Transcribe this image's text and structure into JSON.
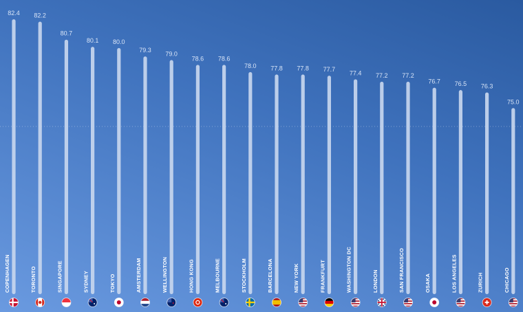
{
  "chart_data": {
    "type": "bar",
    "title": "",
    "xlabel": "",
    "ylabel": "",
    "categories": [
      "COPENHAGEN",
      "TORONTO",
      "SINGAPORE",
      "SYDNEY",
      "TOKYO",
      "AMSTERDAM",
      "WELLINGTON",
      "HONG KONG",
      "MELBOURNE",
      "STOCKHOLM",
      "BARCELONA",
      "NEW YORK",
      "FRANKFURT",
      "WASHINGTON DC",
      "LONDON",
      "SAN FRANCISCO",
      "OSAKA",
      "LOS ANGELES",
      "ZURICH",
      "CHICAGO"
    ],
    "values": [
      82.4,
      82.2,
      80.7,
      80.1,
      80.0,
      79.3,
      79.0,
      78.6,
      78.6,
      78.0,
      77.8,
      77.8,
      77.7,
      77.4,
      77.2,
      77.2,
      76.7,
      76.5,
      76.3,
      75.0
    ],
    "value_labels": [
      "82.4",
      "82.2",
      "80.7",
      "80.1",
      "80.0",
      "79.3",
      "79.0",
      "78.6",
      "78.6",
      "78.0",
      "77.8",
      "77.8",
      "77.7",
      "77.4",
      "77.2",
      "77.2",
      "76.7",
      "76.5",
      "76.3",
      "75.0"
    ],
    "flags": [
      "denmark-flag-icon",
      "canada-flag-icon",
      "singapore-flag-icon",
      "australia-flag-icon",
      "japan-flag-icon",
      "netherlands-flag-icon",
      "new-zealand-flag-icon",
      "hong-kong-flag-icon",
      "australia-flag-icon",
      "sweden-flag-icon",
      "spain-flag-icon",
      "usa-flag-icon",
      "germany-flag-icon",
      "usa-flag-icon",
      "uk-flag-icon",
      "usa-flag-icon",
      "japan-flag-icon",
      "usa-flag-icon",
      "switzerland-flag-icon",
      "usa-flag-icon"
    ],
    "ylim": [
      0,
      82.4
    ],
    "orientation": "vertical",
    "grid": false,
    "legend": "none",
    "colors": {
      "bar": "#c7d6ee",
      "value_label": "#d8e4f7",
      "category_label": "#ffffff",
      "background_top": "#2a5aa0",
      "background_bottom": "#6a9ae0"
    }
  }
}
